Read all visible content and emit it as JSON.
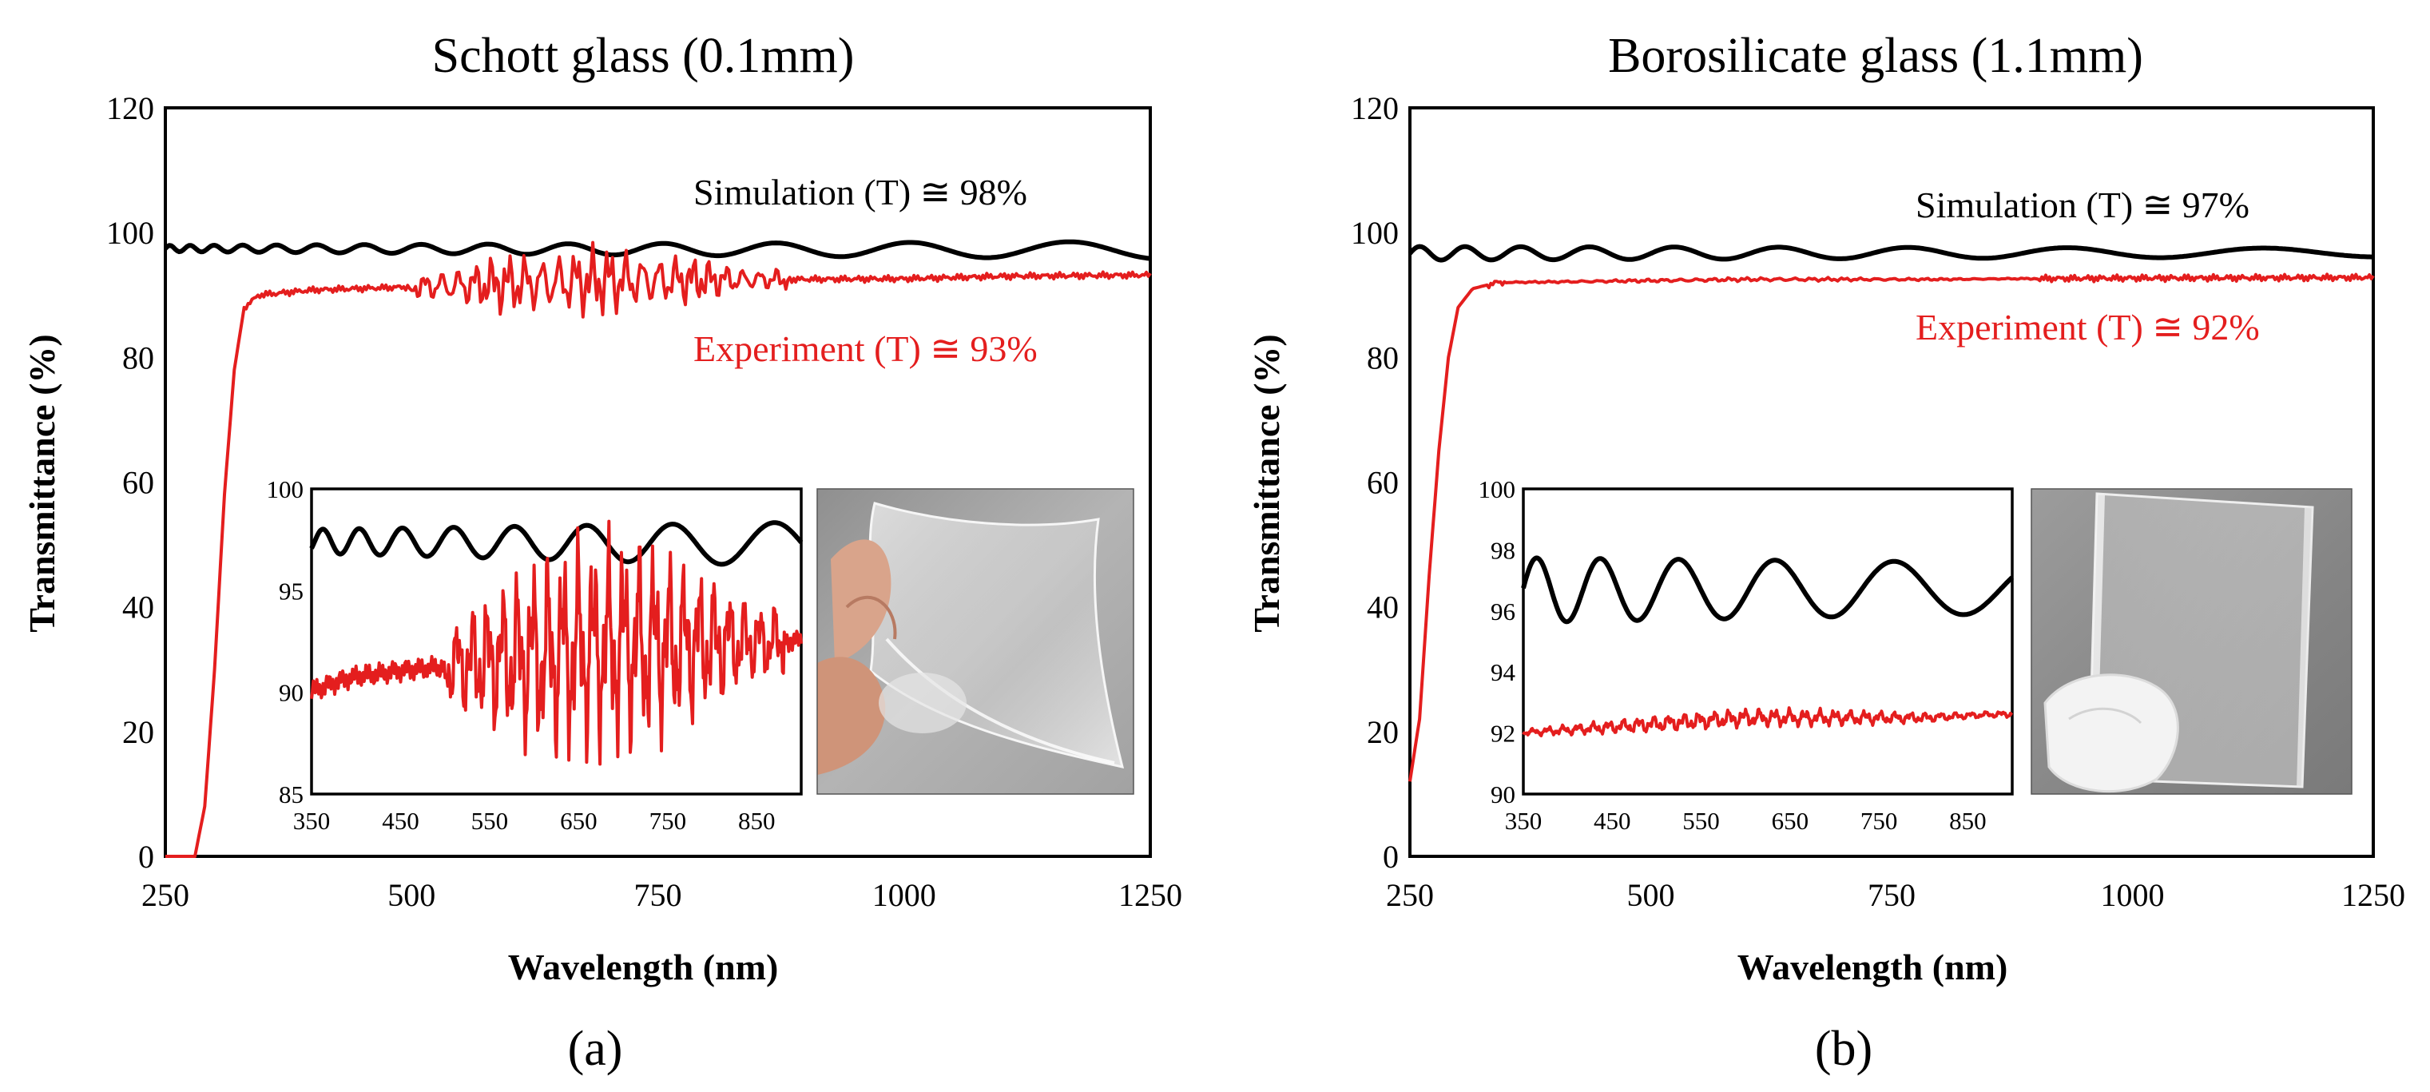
{
  "figure": {
    "panels": [
      {
        "id": "a",
        "panel_label": "(a)",
        "title": "Schott glass (0.1mm)",
        "simulation_annotation": "Simulation (T) ≅ 98%",
        "experiment_annotation": "Experiment (T) ≅ 93%",
        "photo_name": "flexible-glass-sheet-photo"
      },
      {
        "id": "b",
        "panel_label": "(b)",
        "title": "Borosilicate glass (1.1mm)",
        "simulation_annotation": "Simulation (T) ≅ 97%",
        "experiment_annotation": "Experiment (T) ≅ 92%",
        "photo_name": "rigid-glass-plate-photo"
      }
    ]
  },
  "chart_data": [
    {
      "type": "line",
      "title": "Schott glass (0.1mm)",
      "xlabel": "Wavelength (nm)",
      "ylabel": "Transmittance (%)",
      "xlim": [
        250,
        1250
      ],
      "ylim": [
        0,
        120
      ],
      "xticks": [
        250,
        500,
        750,
        1000,
        1250
      ],
      "yticks": [
        0,
        20,
        40,
        60,
        80,
        100,
        120
      ],
      "series": [
        {
          "name": "Simulation",
          "color": "#000000",
          "base": 97.6,
          "osc_amplitude": [
            0.5,
            1.4
          ],
          "osc_period_nm": [
            18,
            190
          ],
          "x": [
            250,
            1250
          ]
        },
        {
          "name": "Experiment",
          "color": "#e41e1e",
          "points": [
            [
              250,
              0
            ],
            [
              280,
              0
            ],
            [
              290,
              8
            ],
            [
              300,
              30
            ],
            [
              310,
              58
            ],
            [
              320,
              78
            ],
            [
              330,
              88
            ],
            [
              345,
              90
            ],
            [
              400,
              90.8
            ],
            [
              500,
              91.3
            ],
            [
              600,
              91.8
            ],
            [
              700,
              92.3
            ],
            [
              880,
              92.5
            ],
            [
              1000,
              92.6
            ],
            [
              1100,
              93.0
            ],
            [
              1250,
              93.2
            ]
          ],
          "noise_band": [
            500,
            880
          ],
          "noise_amplitude_max": 5.5
        }
      ],
      "inset": {
        "xlim": [
          350,
          900
        ],
        "ylim": [
          85,
          100
        ],
        "xticks": [
          350,
          450,
          550,
          650,
          750,
          850
        ],
        "yticks": [
          85,
          90,
          95,
          100
        ]
      }
    },
    {
      "type": "line",
      "title": "Borosilicate glass (1.1mm)",
      "xlabel": "Wavelength (nm)",
      "ylabel": "Transmittance (%)",
      "xlim": [
        250,
        1250
      ],
      "ylim": [
        0,
        120
      ],
      "xticks": [
        250,
        500,
        750,
        1000,
        1250
      ],
      "yticks": [
        0,
        20,
        40,
        60,
        80,
        100,
        120
      ],
      "series": [
        {
          "name": "Simulation",
          "color": "#000000",
          "base": 97.0,
          "osc_amplitude": [
            1.1,
            0.7
          ],
          "osc_period_nm": [
            40,
            250
          ],
          "x": [
            250,
            1250
          ]
        },
        {
          "name": "Experiment",
          "color": "#e41e1e",
          "points": [
            [
              250,
              12
            ],
            [
              260,
              22
            ],
            [
              270,
              45
            ],
            [
              280,
              65
            ],
            [
              290,
              80
            ],
            [
              300,
              88
            ],
            [
              315,
              91
            ],
            [
              340,
              92
            ],
            [
              400,
              92.1
            ],
            [
              500,
              92.3
            ],
            [
              600,
              92.5
            ],
            [
              700,
              92.5
            ],
            [
              800,
              92.5
            ],
            [
              870,
              92.6
            ],
            [
              1000,
              92.7
            ],
            [
              1250,
              92.8
            ]
          ],
          "noise_band": [
            350,
            900
          ],
          "noise_amplitude_max": 0.3
        }
      ],
      "inset": {
        "xlim": [
          350,
          900
        ],
        "ylim": [
          90,
          100
        ],
        "xticks": [
          350,
          450,
          550,
          650,
          750,
          850
        ],
        "yticks": [
          90,
          92,
          94,
          96,
          98,
          100
        ]
      }
    }
  ]
}
